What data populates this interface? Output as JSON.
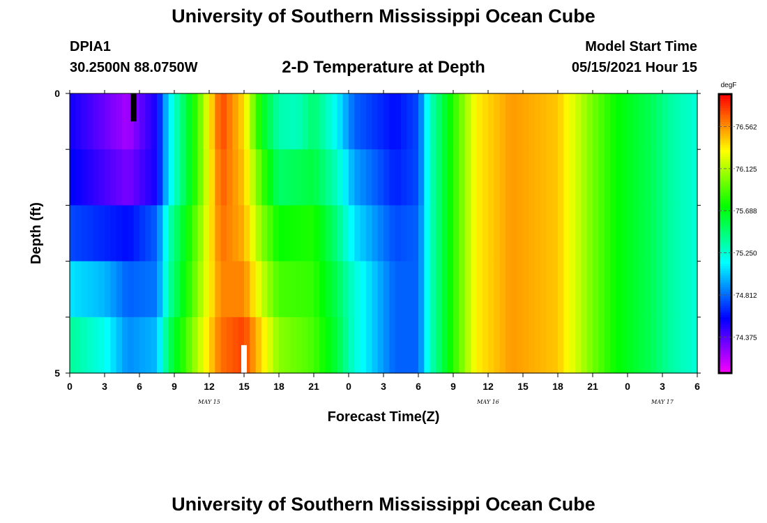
{
  "header": {
    "title": "University of Southern Mississippi Ocean Cube",
    "station": "DPIA1",
    "coords": "30.2500N  88.0750W",
    "subtitle": "2-D Temperature at Depth",
    "model_start_label": "Model Start Time",
    "model_start_value": "05/15/2021 Hour 15"
  },
  "footer": {
    "title": "University of Southern Mississippi Ocean Cube"
  },
  "chart_data": {
    "type": "heatmap",
    "title": "2-D Temperature at Depth",
    "xlabel": "Forecast Time(Z)",
    "ylabel": "Depth (ft)",
    "x_tick_labels": [
      "0",
      "3",
      "6",
      "9",
      "12",
      "15",
      "18",
      "21",
      "0",
      "3",
      "6",
      "9",
      "12",
      "15",
      "18",
      "21",
      "0",
      "3",
      "6"
    ],
    "x_hours": [
      0,
      3,
      6,
      9,
      12,
      15,
      18,
      21,
      24,
      27,
      30,
      33,
      36,
      39,
      42,
      45,
      48,
      51,
      54
    ],
    "date_labels": [
      {
        "hour": 12,
        "label": "MAY 15"
      },
      {
        "hour": 36,
        "label": "MAY 16"
      },
      {
        "hour": 51,
        "label": "MAY 17"
      }
    ],
    "y_tick_labels": [
      "0",
      "5"
    ],
    "ylim": [
      0,
      5
    ],
    "xlim": [
      0,
      54
    ],
    "depth_rows": 5,
    "colorbar": {
      "unit": "degF",
      "labels": [
        "76.562",
        "76.125",
        "75.688",
        "75.250",
        "74.812",
        "74.375"
      ],
      "range": [
        74.0,
        76.9
      ]
    },
    "markers": [
      {
        "hour": 5.5,
        "depth_range": [
          0,
          0.5
        ],
        "color": "#000000"
      },
      {
        "hour": 15,
        "depth_range": [
          4.5,
          5
        ],
        "color": "#ffffff"
      }
    ],
    "temperature_keyframes": [
      {
        "depth": "0-1",
        "hours": [
          0,
          5,
          7.5,
          8.5,
          11,
          13,
          15,
          16.5,
          18,
          19.5,
          21,
          23,
          24.5,
          28,
          30,
          31,
          33.5,
          35,
          38,
          42,
          45,
          47,
          50,
          52,
          54
        ],
        "values": [
          74.55,
          74.2,
          74.55,
          75.1,
          75.9,
          76.75,
          76.4,
          75.7,
          75.35,
          75.3,
          75.5,
          75.15,
          74.8,
          74.6,
          74.75,
          75.3,
          75.95,
          76.35,
          76.55,
          76.45,
          76.0,
          75.75,
          75.55,
          75.35,
          75.25
        ]
      },
      {
        "depth": "1-2",
        "hours": [
          0,
          5,
          7.5,
          8.5,
          11,
          13,
          15,
          16.5,
          18,
          21,
          23,
          24.5,
          28,
          30,
          31,
          33.5,
          35,
          38,
          42,
          45,
          47,
          50,
          52,
          54
        ],
        "values": [
          74.6,
          74.3,
          74.55,
          75.1,
          75.9,
          76.7,
          76.45,
          75.9,
          75.5,
          75.6,
          75.3,
          74.95,
          74.65,
          74.75,
          75.3,
          75.95,
          76.35,
          76.55,
          76.45,
          76.0,
          75.75,
          75.55,
          75.35,
          75.25
        ]
      },
      {
        "depth": "2-3",
        "hours": [
          0,
          5,
          7.5,
          8.5,
          11,
          13,
          15,
          16.5,
          18,
          21,
          23,
          24.5,
          28,
          30,
          31,
          33.5,
          35,
          38,
          42,
          45,
          47,
          50,
          52,
          54
        ],
        "values": [
          74.75,
          74.6,
          74.8,
          75.3,
          76.0,
          76.65,
          76.5,
          76.05,
          75.75,
          75.8,
          75.45,
          75.1,
          74.75,
          74.8,
          75.3,
          75.95,
          76.35,
          76.55,
          76.45,
          76.0,
          75.75,
          75.55,
          75.35,
          75.25
        ]
      },
      {
        "depth": "3-4",
        "hours": [
          0,
          3,
          5,
          7.5,
          8.5,
          11,
          13,
          15,
          16.5,
          18,
          21,
          23,
          24.5,
          28,
          30,
          31,
          33.5,
          35,
          38,
          42,
          45,
          47,
          50,
          52,
          54
        ],
        "values": [
          75.1,
          75.0,
          74.8,
          74.85,
          75.35,
          76.05,
          76.6,
          76.6,
          76.2,
          75.9,
          75.85,
          75.55,
          75.25,
          74.8,
          74.8,
          75.3,
          75.95,
          76.35,
          76.55,
          76.45,
          76.0,
          75.75,
          75.55,
          75.35,
          75.25
        ]
      },
      {
        "depth": "4-5",
        "hours": [
          0,
          3,
          5,
          7.5,
          8.5,
          11,
          13,
          15,
          16.5,
          18,
          21,
          23,
          24.5,
          28,
          30,
          31,
          33.5,
          35,
          38,
          42,
          45,
          47,
          50,
          52,
          54
        ],
        "values": [
          75.4,
          75.2,
          74.9,
          75.0,
          75.5,
          76.15,
          76.65,
          76.75,
          76.4,
          76.05,
          75.9,
          75.6,
          75.25,
          74.8,
          74.8,
          75.3,
          75.95,
          76.35,
          76.55,
          76.45,
          76.0,
          75.75,
          75.55,
          75.35,
          75.25
        ]
      }
    ]
  }
}
